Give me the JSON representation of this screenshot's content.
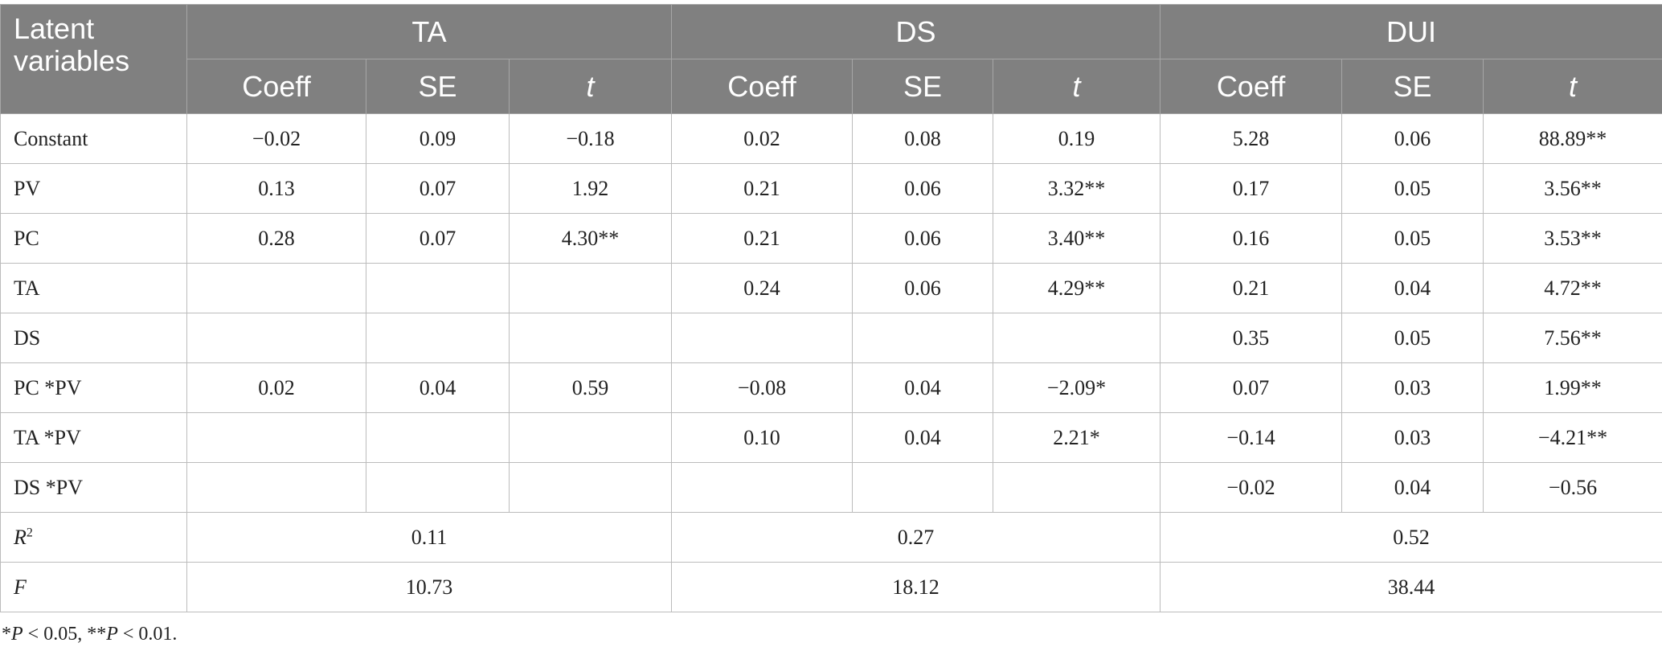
{
  "table": {
    "stub": "Latent variables",
    "groups": [
      {
        "name": "TA",
        "columns": [
          "Coeff",
          "SE",
          "t"
        ]
      },
      {
        "name": "DS",
        "columns": [
          "Coeff",
          "SE",
          "t"
        ]
      },
      {
        "name": "DUI",
        "columns": [
          "Coeff",
          "SE",
          "t"
        ]
      }
    ],
    "rows": [
      {
        "label": "Constant",
        "cells": [
          "−0.02",
          "0.09",
          "−0.18",
          "0.02",
          "0.08",
          "0.19",
          "5.28",
          "0.06",
          "88.89**"
        ]
      },
      {
        "label": "PV",
        "cells": [
          "0.13",
          "0.07",
          "1.92",
          "0.21",
          "0.06",
          "3.32**",
          "0.17",
          "0.05",
          "3.56**"
        ]
      },
      {
        "label": "PC",
        "cells": [
          "0.28",
          "0.07",
          "4.30**",
          "0.21",
          "0.06",
          "3.40**",
          "0.16",
          "0.05",
          "3.53**"
        ]
      },
      {
        "label": "TA",
        "cells": [
          null,
          null,
          null,
          "0.24",
          "0.06",
          "4.29**",
          "0.21",
          "0.04",
          "4.72**"
        ]
      },
      {
        "label": "DS",
        "cells": [
          null,
          null,
          null,
          null,
          null,
          null,
          "0.35",
          "0.05",
          "7.56**"
        ]
      },
      {
        "label": "PC *PV",
        "cells": [
          "0.02",
          "0.04",
          "0.59",
          "−0.08",
          "0.04",
          "−2.09*",
          "0.07",
          "0.03",
          "1.99**"
        ]
      },
      {
        "label": "TA *PV",
        "cells": [
          null,
          null,
          null,
          "0.10",
          "0.04",
          "2.21*",
          "−0.14",
          "0.03",
          "−4.21**"
        ]
      },
      {
        "label": "DS *PV",
        "cells": [
          null,
          null,
          null,
          null,
          null,
          null,
          "−0.02",
          "0.04",
          "−0.56"
        ]
      }
    ],
    "summary": [
      {
        "label": "R",
        "sup": "2",
        "cells": [
          "0.11",
          "0.27",
          "0.52"
        ]
      },
      {
        "label": "F",
        "cells": [
          "10.73",
          "18.12",
          "38.44"
        ]
      }
    ]
  },
  "footnote": [
    "*",
    "P",
    " < 0.05, **",
    "P",
    " < 0.01."
  ]
}
